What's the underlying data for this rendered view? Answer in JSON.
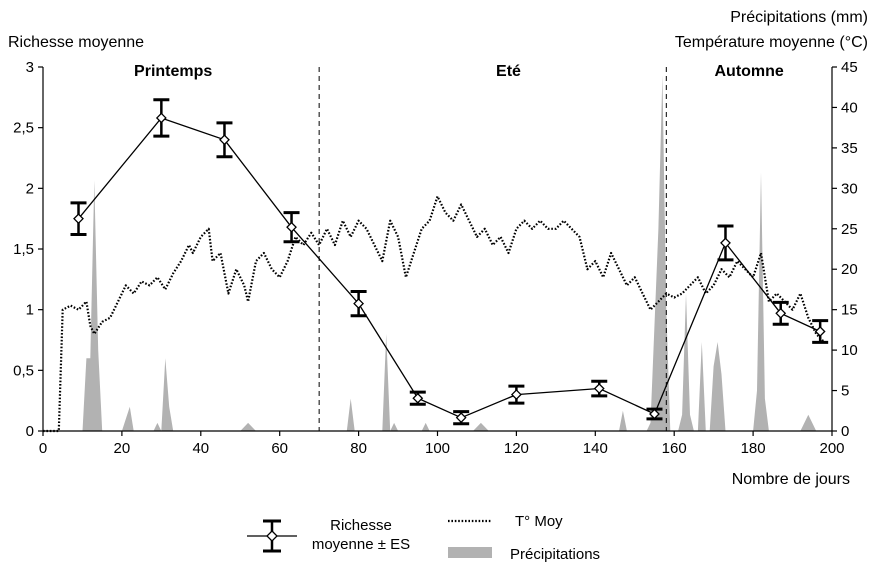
{
  "chart_data": {
    "type": "line",
    "title": "",
    "xlabel": "Nombre de jours",
    "ylabel_left": "Richesse moyenne",
    "ylabel_right_lines": [
      "Précipitations (mm)",
      "Température moyenne (°C)"
    ],
    "xlim": [
      0,
      200
    ],
    "ylim_left": [
      0,
      3
    ],
    "ylim_right": [
      0,
      45
    ],
    "x_ticks": [
      0,
      20,
      40,
      60,
      80,
      100,
      120,
      140,
      160,
      180,
      200
    ],
    "x_tick_labels": [
      "0",
      "20",
      "40",
      "60",
      "80",
      "100",
      "120",
      "140",
      "160",
      "180",
      "200"
    ],
    "y_left_ticks": [
      0,
      0.5,
      1,
      1.5,
      2,
      2.5,
      3
    ],
    "y_left_tick_labels": [
      "0",
      "0,5",
      "1",
      "1,5",
      "2",
      "2,5",
      "3"
    ],
    "y_right_ticks": [
      0,
      5,
      10,
      15,
      20,
      25,
      30,
      35,
      40,
      45
    ],
    "y_right_tick_labels": [
      "0",
      "5",
      "10",
      "15",
      "20",
      "25",
      "30",
      "35",
      "40",
      "45"
    ],
    "grid": false,
    "legend_placement": "bottom",
    "season_dividers": [
      70,
      158
    ],
    "seasons": [
      {
        "label": "Printemps",
        "x": 33
      },
      {
        "label": "Eté",
        "x": 118
      },
      {
        "label": "Automne",
        "x": 179
      }
    ],
    "series": [
      {
        "name": "Richesse moyenne ± ES",
        "axis": "left",
        "style": "line-with-errorbars",
        "x": [
          9,
          30,
          46,
          63,
          80,
          95,
          106,
          120,
          141,
          155,
          173,
          187,
          197
        ],
        "y": [
          1.75,
          2.58,
          2.4,
          1.68,
          1.05,
          0.27,
          0.11,
          0.3,
          0.35,
          0.14,
          1.55,
          0.97,
          0.82
        ],
        "err": [
          0.13,
          0.15,
          0.14,
          0.12,
          0.1,
          0.05,
          0.05,
          0.07,
          0.06,
          0.04,
          0.14,
          0.09,
          0.09
        ]
      },
      {
        "name": "T° Moy",
        "axis": "right",
        "style": "dotted-line",
        "x": [
          0,
          4,
          5,
          7,
          9,
          11,
          12,
          13,
          15,
          17,
          19,
          21,
          23,
          25,
          27,
          29,
          31,
          33,
          35,
          37,
          38,
          40,
          42,
          43,
          45,
          47,
          49,
          51,
          52,
          54,
          56,
          58,
          60,
          62,
          64,
          66,
          68,
          70,
          72,
          74,
          76,
          78,
          80,
          82,
          84,
          86,
          88,
          90,
          92,
          94,
          96,
          98,
          100,
          102,
          104,
          106,
          108,
          110,
          112,
          114,
          116,
          118,
          120,
          122,
          124,
          126,
          128,
          130,
          132,
          134,
          136,
          138,
          140,
          142,
          144,
          146,
          148,
          150,
          152,
          154,
          156,
          158,
          160,
          162,
          164,
          166,
          168,
          170,
          172,
          174,
          176,
          178,
          180,
          182,
          184,
          186,
          188,
          190,
          192,
          194,
          196,
          198
        ],
        "y": [
          0,
          0,
          15,
          15.5,
          15,
          16,
          13,
          12,
          13.5,
          14,
          16,
          18,
          17,
          18.5,
          18,
          19,
          17.5,
          19.5,
          21,
          23,
          22,
          24,
          25,
          21,
          22,
          17,
          20,
          18,
          16,
          21,
          22,
          20,
          19,
          21,
          24,
          23,
          24.5,
          23,
          25,
          23,
          26,
          24,
          26,
          25,
          23,
          21,
          26,
          24,
          19,
          22,
          25,
          26,
          29,
          27,
          26,
          28,
          26,
          24,
          25,
          23,
          24,
          22,
          25,
          26,
          25,
          26,
          25,
          25,
          26,
          25,
          24,
          20,
          21,
          19,
          22,
          20,
          18,
          19,
          17,
          15,
          16,
          17,
          16.5,
          17,
          18,
          19,
          17,
          18,
          20,
          19,
          21,
          20,
          19,
          22,
          16,
          17,
          16,
          15,
          17,
          14,
          12,
          11
        ]
      },
      {
        "name": "Précipitations",
        "axis": "right",
        "style": "area-spikes",
        "x": [
          0,
          10,
          11,
          12,
          13,
          14,
          15,
          20,
          22,
          23,
          28,
          29,
          30,
          31,
          32,
          33,
          35,
          38,
          50,
          52,
          54,
          77,
          78,
          79,
          85,
          86,
          87,
          88,
          89,
          90,
          96,
          97,
          98,
          109,
          111,
          113,
          146,
          147,
          148,
          153,
          154,
          156,
          157,
          158,
          159,
          161,
          162,
          163,
          164,
          165,
          166,
          167,
          168,
          169,
          170,
          171,
          172,
          173,
          174,
          179,
          180,
          181,
          182,
          183,
          184,
          192,
          194,
          196,
          200
        ],
        "y": [
          0,
          0,
          9,
          9,
          31,
          10,
          0,
          0,
          3,
          0,
          0,
          1,
          0,
          9,
          3,
          0,
          0,
          0,
          0,
          1,
          0,
          0,
          4,
          0,
          0,
          0,
          12,
          0,
          1,
          0,
          0,
          1,
          0,
          0,
          1,
          0,
          0,
          2.5,
          0,
          0,
          1,
          25,
          44,
          15,
          0,
          0,
          2,
          17,
          2,
          0,
          0,
          11,
          0,
          0,
          8,
          11,
          7,
          0,
          0,
          0,
          0,
          5,
          32,
          4,
          0,
          0,
          2,
          0,
          0
        ]
      }
    ]
  }
}
